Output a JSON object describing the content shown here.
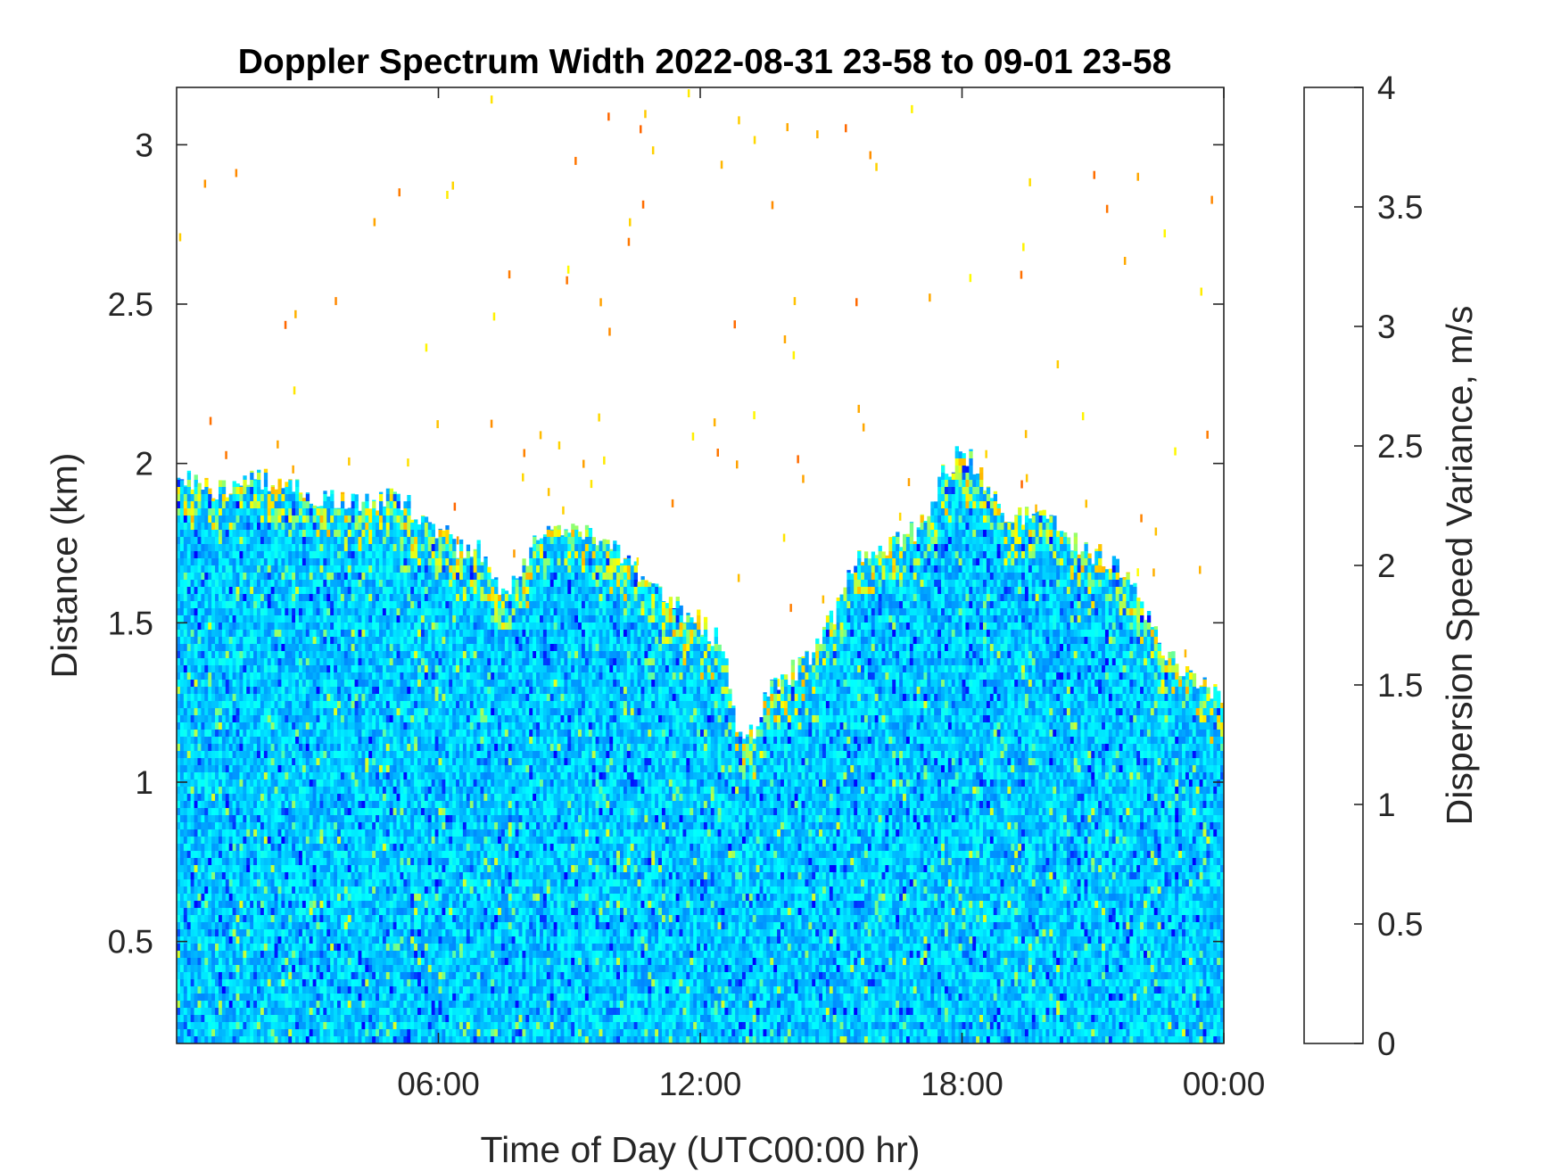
{
  "chart_data": {
    "type": "heatmap",
    "title": "Doppler Spectrum Width 2022-08-31 23-58 to 09-01 23-58",
    "xlabel": "Time of Day (UTC00:00 hr)",
    "ylabel": "Distance (km)",
    "xlim_hours": [
      0,
      24
    ],
    "ylim": [
      0.18,
      3.18
    ],
    "xticks": [
      {
        "value": 6,
        "label": "06:00"
      },
      {
        "value": 12,
        "label": "12:00"
      },
      {
        "value": 18,
        "label": "18:00"
      },
      {
        "value": 24,
        "label": "00:00"
      }
    ],
    "yticks": [
      {
        "value": 0.5,
        "label": "0.5"
      },
      {
        "value": 1,
        "label": "1"
      },
      {
        "value": 1.5,
        "label": "1.5"
      },
      {
        "value": 2,
        "label": "2"
      },
      {
        "value": 2.5,
        "label": "2.5"
      },
      {
        "value": 3,
        "label": "3"
      }
    ],
    "colorbar": {
      "label": "Dispersion Speed Variance, m/s",
      "colormap": "jet",
      "clim": [
        0,
        4
      ],
      "ticks": [
        {
          "value": 0,
          "label": "0"
        },
        {
          "value": 0.5,
          "label": "0.5"
        },
        {
          "value": 1,
          "label": "1"
        },
        {
          "value": 1.5,
          "label": "1.5"
        },
        {
          "value": 2,
          "label": "2"
        },
        {
          "value": 2.5,
          "label": "2.5"
        },
        {
          "value": 3,
          "label": "3"
        },
        {
          "value": 3.5,
          "label": "3.5"
        },
        {
          "value": 4,
          "label": "4"
        }
      ]
    },
    "typical_value_ms": 1.3,
    "noise_value_ms": 2.8,
    "data_top_profile": {
      "hours": [
        0,
        0.5,
        1,
        2,
        3,
        4,
        5,
        6,
        6.5,
        7,
        7.5,
        8,
        8.5,
        9,
        10,
        10.5,
        11,
        11.5,
        12,
        12.4,
        12.6,
        12.8,
        13,
        13.3,
        13.6,
        14,
        14.5,
        15,
        15.5,
        16,
        16.5,
        17,
        17.5,
        18,
        18.5,
        19,
        19.5,
        20,
        20.5,
        21,
        21.5,
        22,
        22.5,
        23,
        23.5,
        24
      ],
      "distance_km": [
        2.0,
        1.92,
        1.92,
        1.95,
        1.9,
        1.88,
        1.9,
        1.8,
        1.73,
        1.72,
        1.6,
        1.68,
        1.82,
        1.8,
        1.75,
        1.66,
        1.6,
        1.55,
        1.5,
        1.45,
        1.38,
        1.2,
        1.15,
        1.18,
        1.3,
        1.33,
        1.4,
        1.5,
        1.7,
        1.72,
        1.75,
        1.8,
        1.95,
        2.05,
        1.95,
        1.85,
        1.83,
        1.82,
        1.75,
        1.72,
        1.7,
        1.6,
        1.45,
        1.35,
        1.3,
        1.25
      ]
    }
  }
}
